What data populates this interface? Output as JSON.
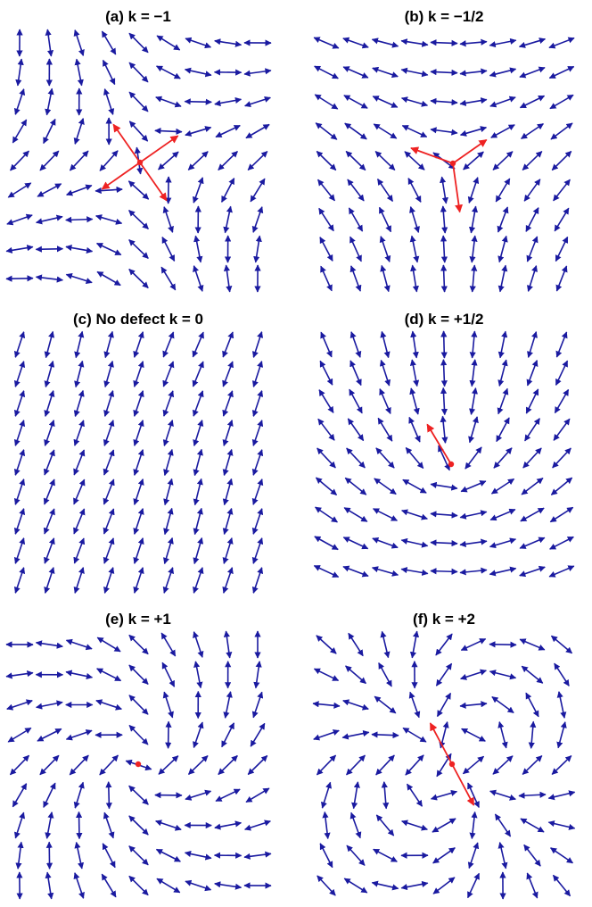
{
  "colors": {
    "director": "#1a1aa0",
    "defect": "#ee2222",
    "title": "#000000"
  },
  "panels": [
    {
      "id": "a",
      "title": "(a) k = −1",
      "k": -1,
      "defect": true
    },
    {
      "id": "b",
      "title": "(b) k = −1/2",
      "k": -0.5,
      "defect": true
    },
    {
      "id": "c",
      "title": "(c) No defect k = 0",
      "k": 0,
      "defect": false
    },
    {
      "id": "d",
      "title": "(d) k = +1/2",
      "k": 0.5,
      "defect": true
    },
    {
      "id": "e",
      "title": "(e) k = +1",
      "k": 1,
      "defect": true
    },
    {
      "id": "f",
      "title": "(f) k = +2",
      "k": 2,
      "defect": true
    }
  ]
}
